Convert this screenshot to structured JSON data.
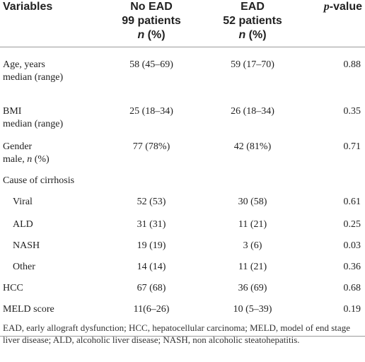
{
  "header": {
    "variables": "Variables",
    "group1_line1": "No EAD",
    "group1_line2": "99 patients",
    "group1_n": "n",
    "group1_pct": " (%)",
    "group2_line1": "EAD",
    "group2_line2": "52 patients",
    "group2_n": "n",
    "group2_pct": " (%)",
    "p_italic": "p",
    "p_rest": "-value"
  },
  "rows": [
    {
      "label1": "Age, years",
      "label2": "median (range)",
      "noead": "58 (45–69)",
      "ead": "59 (17–70)",
      "p": "0.88"
    },
    {
      "label1": "BMI",
      "label2": "median (range)",
      "noead": "25 (18–34)",
      "ead": "26 (18–34)",
      "p": "0.35"
    },
    {
      "label1": "Gender",
      "label2a": "male, ",
      "label2n": "n",
      "label2b": " (%)",
      "noead": "77 (78%)",
      "ead": "42 (81%)",
      "p": "0.71"
    },
    {
      "label1": "Cause of cirrhosis"
    },
    {
      "label1": "Viral",
      "noead": "52 (53)",
      "ead": "30 (58)",
      "p": "0.61"
    },
    {
      "label1": "ALD",
      "noead": "31 (31)",
      "ead": "11 (21)",
      "p": "0.25"
    },
    {
      "label1": "NASH",
      "noead": "19 (19)",
      "ead": "3 (6)",
      "p": "0.03"
    },
    {
      "label1": "Other",
      "noead": "14 (14)",
      "ead": "11 (21)",
      "p": "0.36"
    },
    {
      "label1": "HCC",
      "noead": "67 (68)",
      "ead": "36 (69)",
      "p": "0.68"
    },
    {
      "label1": "MELD score",
      "noead": "11(6–26)",
      "ead": "10 (5–39)",
      "p": "0.19"
    }
  ],
  "footnote": "EAD, early allograft dysfunction; HCC, hepatocellular carcinoma; MELD, model of end stage liver disease; ALD, alcoholic liver disease; NASH, non alcoholic steatohepatitis."
}
